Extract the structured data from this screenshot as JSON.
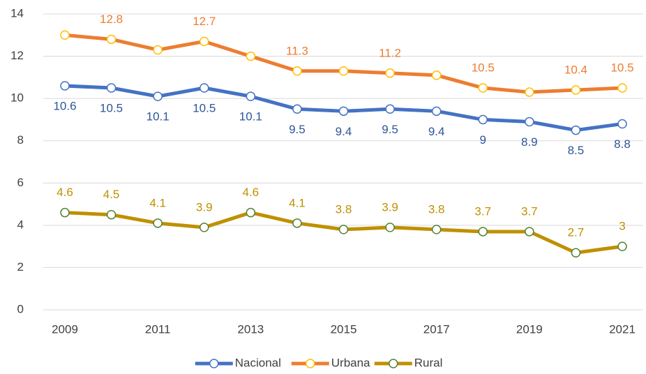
{
  "chart_data": {
    "type": "line",
    "x": [
      2009,
      2010,
      2011,
      2012,
      2013,
      2014,
      2015,
      2016,
      2017,
      2018,
      2019,
      2020,
      2021
    ],
    "xlim": [
      2009,
      2021
    ],
    "xticks": [
      2009,
      2011,
      2013,
      2015,
      2017,
      2019,
      2021
    ],
    "ylim": [
      0,
      14
    ],
    "yticks": [
      0,
      2,
      4,
      6,
      8,
      10,
      12,
      14
    ],
    "grid": true,
    "legend": "bottom",
    "series": [
      {
        "name": "Nacional",
        "color": "#4472c4",
        "marker_color": "#4472c4",
        "label_color": "#2f5597",
        "label_position": "below",
        "values": [
          10.6,
          10.5,
          10.1,
          10.5,
          10.1,
          9.5,
          9.4,
          9.5,
          9.4,
          9,
          8.9,
          8.5,
          8.8
        ]
      },
      {
        "name": "Urbana",
        "color": "#ed7d31",
        "marker_color": "#ffc000",
        "label_color": "#ed7d31",
        "label_position": "above",
        "values": [
          13.0,
          12.8,
          12.3,
          12.7,
          12.0,
          11.3,
          11.3,
          11.2,
          11.1,
          10.5,
          10.3,
          10.4,
          10.5
        ],
        "value_labels": [
          null,
          "12.8",
          null,
          "12.7",
          null,
          "11.3",
          null,
          "11.2",
          null,
          "10.5",
          null,
          "10.4",
          "10.5"
        ]
      },
      {
        "name": "Rural",
        "color": "#bf9000",
        "marker_color": "#548235",
        "label_color": "#bf9000",
        "label_position": "above",
        "values": [
          4.6,
          4.5,
          4.1,
          3.9,
          4.6,
          4.1,
          3.8,
          3.9,
          3.8,
          3.7,
          3.7,
          2.7,
          3
        ]
      }
    ]
  }
}
